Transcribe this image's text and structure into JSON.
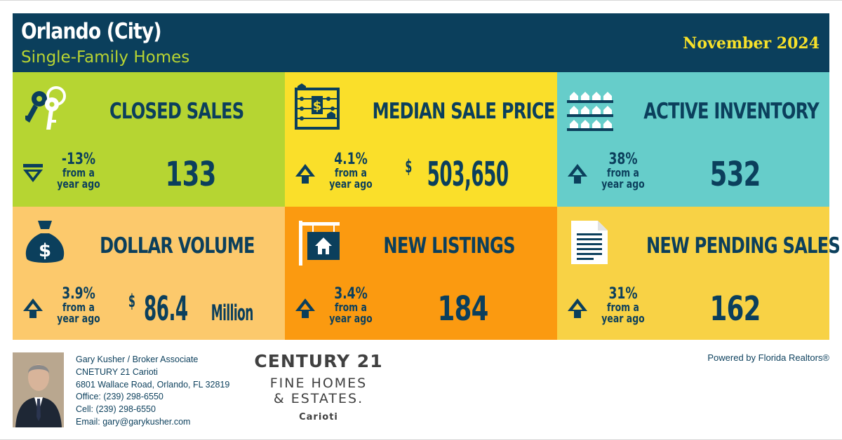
{
  "header": {
    "city": "Orlando (City)",
    "property_type": "Single-Family Homes",
    "period": "November 2024"
  },
  "colors": {
    "header_bg": "#0b3f5c",
    "header_subtitle": "#b8d432",
    "header_date": "#f7e12a",
    "text_dark": "#0b3f5c",
    "closed_sales_bg": "#b6d532",
    "median_price_bg": "#fadf2a",
    "active_inventory_bg": "#66cdca",
    "dollar_volume_bg": "#fcc96c",
    "new_listings_bg": "#fb9a10",
    "new_pending_bg": "#f8d245"
  },
  "metrics": [
    {
      "title": "CLOSED SALES",
      "icon": "keys-icon",
      "direction": "down",
      "change_pct": "-13%",
      "change_sub1": "from a",
      "change_sub2": "year ago",
      "value_prefix": "",
      "value": "133",
      "value_suffix": ""
    },
    {
      "title": "MEDIAN SALE PRICE",
      "icon": "abacus-icon",
      "direction": "up",
      "change_pct": "4.1%",
      "change_sub1": "from a",
      "change_sub2": "year ago",
      "value_prefix": "$",
      "value": "503,650",
      "value_suffix": ""
    },
    {
      "title": "ACTIVE INVENTORY",
      "icon": "houses-shelves-icon",
      "direction": "up",
      "change_pct": "38%",
      "change_sub1": "from a",
      "change_sub2": "year ago",
      "value_prefix": "",
      "value": "532",
      "value_suffix": ""
    },
    {
      "title": "DOLLAR VOLUME",
      "icon": "money-bag-icon",
      "direction": "up",
      "change_pct": "3.9%",
      "change_sub1": "from a",
      "change_sub2": "year ago",
      "value_prefix": "$",
      "value": "86.4",
      "value_suffix": "Million"
    },
    {
      "title": "NEW LISTINGS",
      "icon": "house-sign-icon",
      "direction": "up",
      "change_pct": "3.4%",
      "change_sub1": "from a",
      "change_sub2": "year ago",
      "value_prefix": "",
      "value": "184",
      "value_suffix": ""
    },
    {
      "title": "NEW PENDING SALES",
      "icon": "document-icon",
      "direction": "up",
      "change_pct": "31%",
      "change_sub1": "from a",
      "change_sub2": "year ago",
      "value_prefix": "",
      "value": "162",
      "value_suffix": ""
    }
  ],
  "agent": {
    "name_title": "Gary Kusher / Broker Associate",
    "company": "CNETURY 21 Carioti",
    "address": "6801 Wallace Road, Orlando, FL 32819",
    "office": "Office: (239) 298-6550",
    "cell": "Cell: (239) 298-6550",
    "email": "Email: gary@garykusher.com"
  },
  "logo": {
    "line1": "CENTURY 21",
    "line2": "FINE HOMES",
    "line3": "& ESTATES.",
    "line4": "Carioti"
  },
  "powered_by": "Powered by Florida Realtors®"
}
